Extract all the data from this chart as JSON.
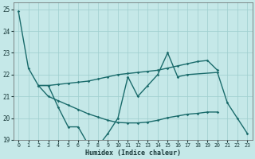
{
  "background_color": "#c5e8e8",
  "grid_color": "#9ecece",
  "line_color": "#1a6b6b",
  "xlabel": "Humidex (Indice chaleur)",
  "xlim": [
    -0.5,
    23.5
  ],
  "ylim": [
    19,
    25.3
  ],
  "yticks": [
    19,
    20,
    21,
    22,
    23,
    24,
    25
  ],
  "xticks": [
    0,
    1,
    2,
    3,
    4,
    5,
    6,
    7,
    8,
    9,
    10,
    11,
    12,
    13,
    14,
    15,
    16,
    17,
    18,
    19,
    20,
    21,
    22,
    23
  ],
  "lines": [
    {
      "x": [
        0,
        1,
        2,
        3,
        4,
        5,
        6,
        7,
        8,
        9,
        10,
        11,
        12,
        13,
        14,
        15,
        16,
        17,
        20,
        21,
        22,
        23
      ],
      "y": [
        24.9,
        22.3,
        21.5,
        21.5,
        20.5,
        19.6,
        19.6,
        18.8,
        18.7,
        19.3,
        20.0,
        21.9,
        21.0,
        21.5,
        22.0,
        23.0,
        21.9,
        22.0,
        22.1,
        20.7,
        20.0,
        19.3
      ],
      "lw": 1.0
    },
    {
      "x": [
        2,
        3,
        4,
        5,
        6,
        7,
        8,
        9,
        10,
        11,
        12,
        13,
        14,
        15,
        16,
        17,
        18,
        19,
        20
      ],
      "y": [
        21.5,
        21.5,
        21.55,
        21.6,
        21.65,
        21.7,
        21.8,
        21.9,
        22.0,
        22.05,
        22.1,
        22.15,
        22.2,
        22.3,
        22.4,
        22.5,
        22.6,
        22.65,
        22.2
      ],
      "lw": 1.0
    },
    {
      "x": [
        2,
        3,
        4,
        5,
        6,
        7,
        8,
        9,
        10,
        11,
        12,
        13,
        14,
        15,
        16,
        17,
        18,
        19,
        20
      ],
      "y": [
        21.5,
        21.0,
        20.8,
        20.6,
        20.4,
        20.2,
        20.05,
        19.9,
        19.8,
        19.78,
        19.78,
        19.82,
        19.9,
        20.02,
        20.1,
        20.18,
        20.22,
        20.28,
        20.28
      ],
      "lw": 1.0
    }
  ]
}
